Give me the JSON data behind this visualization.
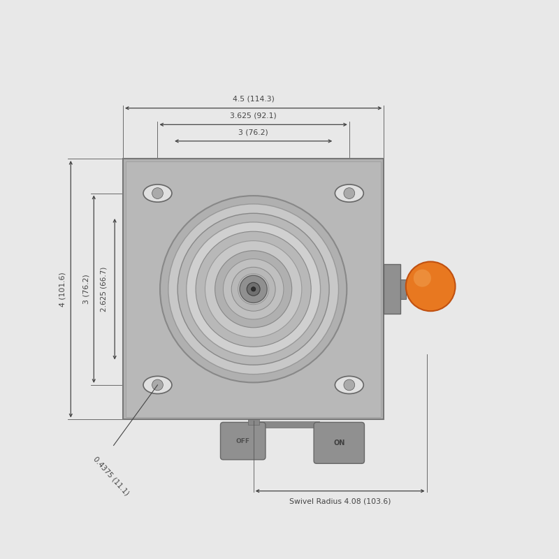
{
  "bg_color": "#e8e8e8",
  "plate_color": "#b0b0b0",
  "plate_edge": "#888888",
  "chrome_outer": "#c0c0c0",
  "chrome_rings": [
    {
      "r": 0.17,
      "fc": "#b0b0b0",
      "ec": "#888888",
      "lw": 1.5
    },
    {
      "r": 0.155,
      "fc": "#c8c8c8",
      "ec": "#999999",
      "lw": 1.0
    },
    {
      "r": 0.138,
      "fc": "#b8b8b8",
      "ec": "#888888",
      "lw": 1.0
    },
    {
      "r": 0.122,
      "fc": "#d0d0d0",
      "ec": "#999999",
      "lw": 1.0
    },
    {
      "r": 0.105,
      "fc": "#b8b8b8",
      "ec": "#888888",
      "lw": 0.8
    },
    {
      "r": 0.088,
      "fc": "#c8c8c8",
      "ec": "#999999",
      "lw": 0.8
    },
    {
      "r": 0.07,
      "fc": "#b0b0b0",
      "ec": "#888888",
      "lw": 0.8
    },
    {
      "r": 0.055,
      "fc": "#c0c0c0",
      "ec": "#909090",
      "lw": 0.7
    },
    {
      "r": 0.04,
      "fc": "#b8b8b8",
      "ec": "#888888",
      "lw": 0.7
    },
    {
      "r": 0.028,
      "fc": "#c8c8c8",
      "ec": "#909090",
      "lw": 0.7
    },
    {
      "r": 0.018,
      "fc": "#b0b0b0",
      "ec": "#888888",
      "lw": 0.6
    },
    {
      "r": 0.01,
      "fc": "#d0d0d0",
      "ec": "#909090",
      "lw": 0.5
    }
  ],
  "orange_color": "#e87820",
  "orange_dark": "#c05010",
  "orange_light": "#f0a050",
  "dim_color": "#444444",
  "line_color": "#555555",
  "annotations": {
    "top1": "4.5 (114.3)",
    "top2": "3.625 (92.1)",
    "top3": "3 (76.2)",
    "left1": "4 (101.6)",
    "left2": "3 (76.2)",
    "left3": "2.625 (66.7)",
    "bolt_hole": "0.4375 (11.1)",
    "swivel": "Swivel Radius 4.08 (103.6)"
  }
}
